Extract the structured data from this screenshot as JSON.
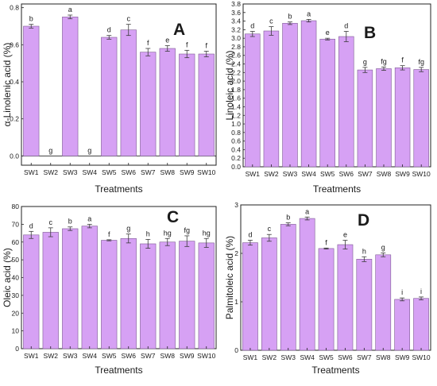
{
  "chart_data": [
    {
      "type": "bar",
      "panel": "A",
      "categories": [
        "SW1",
        "SW2",
        "SW3",
        "SW4",
        "SW5",
        "SW6",
        "SW7",
        "SW8",
        "SW9",
        "SW10"
      ],
      "values": [
        0.7,
        0.0,
        0.75,
        0.0,
        0.64,
        0.68,
        0.56,
        0.58,
        0.55,
        0.55
      ],
      "errors": [
        0.01,
        0.0,
        0.01,
        0.0,
        0.01,
        0.03,
        0.02,
        0.015,
        0.02,
        0.015
      ],
      "significance": [
        "b",
        "g",
        "a",
        "g",
        "d",
        "c",
        "f",
        "e",
        "f",
        "f"
      ],
      "xlabel": "Treatments",
      "ylabel": "α-Linolenic acid (%)",
      "ylim": [
        -0.05,
        0.82
      ],
      "yticks": [
        "0.0",
        "0.2",
        "0.4",
        "0.6",
        "0.8"
      ],
      "ytick_values": [
        0.0,
        0.2,
        0.4,
        0.6,
        0.8
      ],
      "zero_line": true,
      "grid": false
    },
    {
      "type": "bar",
      "panel": "B",
      "categories": [
        "SW1",
        "SW2",
        "SW3",
        "SW4",
        "SW5",
        "SW6",
        "SW7",
        "SW8",
        "SW9",
        "SW10"
      ],
      "values": [
        3.1,
        3.17,
        3.35,
        3.41,
        2.98,
        3.04,
        2.26,
        2.29,
        2.31,
        2.27
      ],
      "errors": [
        0.06,
        0.1,
        0.03,
        0.03,
        0.02,
        0.12,
        0.06,
        0.04,
        0.05,
        0.05
      ],
      "significance": [
        "d",
        "c",
        "b",
        "a",
        "e",
        "d",
        "g",
        "fg",
        "f",
        "fg"
      ],
      "xlabel": "Treatments",
      "ylabel": "Linoleic acid (%)",
      "ylim": [
        0,
        3.8
      ],
      "yticks": [
        "0.0",
        "0.2",
        "0.4",
        "0.6",
        "0.8",
        "1.0",
        "1.2",
        "1.4",
        "1.6",
        "1.8",
        "2.0",
        "2.2",
        "2.4",
        "2.6",
        "2.8",
        "3.0",
        "3.2",
        "3.4",
        "3.6",
        "3.8"
      ],
      "ytick_values": [
        0.0,
        0.2,
        0.4,
        0.6,
        0.8,
        1.0,
        1.2,
        1.4,
        1.6,
        1.8,
        2.0,
        2.2,
        2.4,
        2.6,
        2.8,
        3.0,
        3.2,
        3.4,
        3.6,
        3.8
      ],
      "zero_line": false,
      "grid": false
    },
    {
      "type": "bar",
      "panel": "C",
      "categories": [
        "SW1",
        "SW2",
        "SW3",
        "SW4",
        "SW5",
        "SW6",
        "SW7",
        "SW8",
        "SW9",
        "SW10"
      ],
      "values": [
        64,
        65.5,
        67.5,
        69,
        61,
        62,
        59,
        60,
        60.5,
        59.5
      ],
      "errors": [
        2.0,
        2.5,
        1.0,
        1.0,
        0.3,
        2.5,
        2.5,
        2.0,
        3.0,
        2.5
      ],
      "significance": [
        "d",
        "c",
        "b",
        "a",
        "f",
        "g",
        "h",
        "hg",
        "fg",
        "hg"
      ],
      "xlabel": "Treatments",
      "ylabel": "Oleic acid (%)",
      "ylim": [
        0,
        80
      ],
      "yticks": [
        "0",
        "10",
        "20",
        "30",
        "40",
        "50",
        "60",
        "70",
        "80"
      ],
      "ytick_values": [
        0,
        10,
        20,
        30,
        40,
        50,
        60,
        70,
        80
      ],
      "zero_line": false,
      "grid": false
    },
    {
      "type": "bar",
      "panel": "D",
      "categories": [
        "SW1",
        "SW2",
        "SW3",
        "SW4",
        "SW5",
        "SW6",
        "SW7",
        "SW8",
        "SW9",
        "SW10"
      ],
      "values": [
        2.22,
        2.32,
        2.6,
        2.72,
        2.1,
        2.18,
        1.88,
        1.97,
        1.05,
        1.07
      ],
      "errors": [
        0.05,
        0.07,
        0.03,
        0.03,
        0.01,
        0.09,
        0.05,
        0.04,
        0.03,
        0.03
      ],
      "significance": [
        "d",
        "c",
        "b",
        "a",
        "f",
        "e",
        "h",
        "g",
        "i",
        "i"
      ],
      "xlabel": "Treatments",
      "ylabel": "Palmitoleic acid (%)",
      "ylim": [
        0,
        3
      ],
      "yticks": [
        "0",
        "1",
        "2",
        "3"
      ],
      "ytick_values": [
        0,
        1,
        2,
        3
      ],
      "zero_line": false,
      "grid": false
    }
  ],
  "style": {
    "bar_color": "#d6a1f4",
    "bar_edge_color": "#7d5a93",
    "error_color": "#3a3a3a"
  }
}
